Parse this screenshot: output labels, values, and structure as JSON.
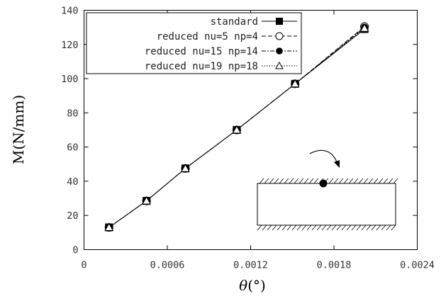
{
  "chart_data": {
    "type": "line",
    "xlabel_prefix": "θ",
    "xlabel_unit": "(°)",
    "ylabel": "M(N/mm)",
    "xlim": [
      0,
      0.0024
    ],
    "ylim": [
      0,
      140
    ],
    "x_ticks": [
      "0",
      "0.0006",
      "0.0012",
      "0.0018",
      "0.0024"
    ],
    "y_ticks": [
      "0",
      "20",
      "40",
      "60",
      "80",
      "100",
      "120",
      "140"
    ],
    "grid": false,
    "legend_position": "top-left",
    "x": [
      0.00018,
      0.00045,
      0.00073,
      0.0011,
      0.00152,
      0.00202
    ],
    "series": [
      {
        "name": "standard",
        "marker": "filled-square",
        "line_style": "solid",
        "values": [
          13,
          28.5,
          47.5,
          70,
          97,
          129
        ]
      },
      {
        "name": "reduced nu=5 np=4",
        "marker": "open-circle",
        "line_style": "dashed",
        "values": [
          13,
          28.5,
          47.5,
          70,
          97,
          130.5
        ]
      },
      {
        "name": "reduced nu=15 np=14",
        "marker": "filled-circle",
        "line_style": "dashdot",
        "values": [
          13,
          28.5,
          47.5,
          70,
          97,
          130
        ]
      },
      {
        "name": "reduced nu=19 np=18",
        "marker": "open-triangle",
        "line_style": "dotted",
        "values": [
          13,
          28.5,
          47.5,
          70,
          97,
          129.5
        ]
      }
    ]
  },
  "colors": {
    "line": "#000000",
    "axis": "#000000",
    "legend_border": "#000000"
  }
}
